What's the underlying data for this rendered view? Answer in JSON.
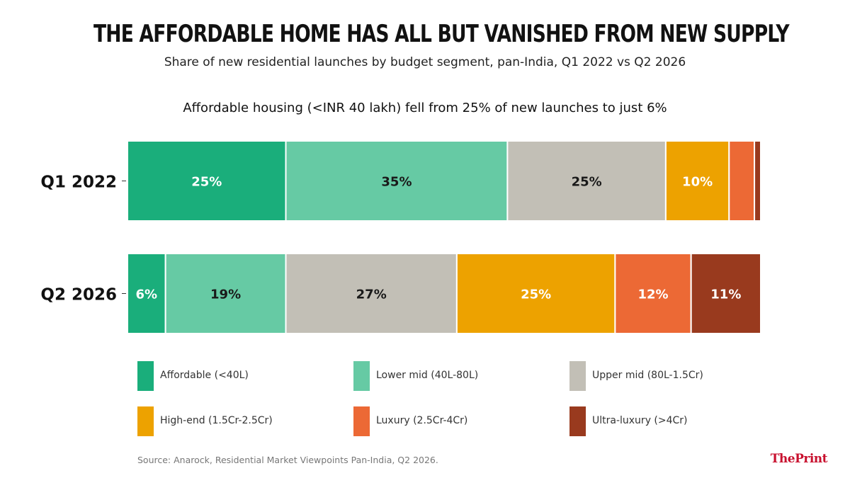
{
  "header": {
    "title": "THE AFFORDABLE HOME HAS ALL BUT VANISHED FROM NEW SUPPLY",
    "subtitle": "Share of new residential launches by budget segment, pan-India, Q1 2022 vs Q2 2026",
    "annotation": "Affordable housing (<INR 40 lakh) fell from 25% of new launches to just 6%"
  },
  "chart_data": {
    "type": "bar",
    "orientation": "horizontal",
    "stacked": true,
    "categories": [
      "Q1 2022",
      "Q2 2026"
    ],
    "series": [
      {
        "name": "Affordable (<40L)",
        "color": "#1aae7b",
        "label_color": "#ffffff",
        "values": [
          25,
          6
        ],
        "labels": [
          "25%",
          "6%"
        ]
      },
      {
        "name": "Lower mid (40L-80L)",
        "color": "#66caa4",
        "label_color": "#1a1a1a",
        "values": [
          35,
          19
        ],
        "labels": [
          "35%",
          "19%"
        ]
      },
      {
        "name": "Upper mid (80L-1.5Cr)",
        "color": "#c2bfb6",
        "label_color": "#1a1a1a",
        "values": [
          25,
          27
        ],
        "labels": [
          "25%",
          "27%"
        ]
      },
      {
        "name": "High-end (1.5Cr-2.5Cr)",
        "color": "#eda200",
        "label_color": "#ffffff",
        "values": [
          10,
          25
        ],
        "labels": [
          "10%",
          "25%"
        ]
      },
      {
        "name": "Luxury (2.5Cr-4Cr)",
        "color": "#ec6935",
        "label_color": "#ffffff",
        "values": [
          4,
          12
        ],
        "labels": [
          "",
          "12%"
        ]
      },
      {
        "name": "Ultra-luxury (>4Cr)",
        "color": "#993a1e",
        "label_color": "#ffffff",
        "values": [
          1,
          11
        ],
        "labels": [
          "",
          "11%"
        ]
      }
    ],
    "xlim": [
      0,
      100
    ],
    "grid": false,
    "legend_position": "bottom"
  },
  "footer": {
    "source": "Source: Anarock, Residential Market Viewpoints Pan-India, Q2 2026.",
    "logo_the": "The",
    "logo_print": "Print"
  }
}
